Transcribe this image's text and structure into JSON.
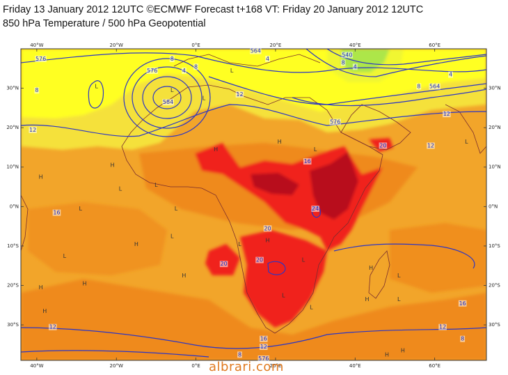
{
  "header": {
    "line1": "Friday 13 January 2012 12UTC ©ECMWF Forecast t+168 VT: Friday 20 January 2012 12UTC",
    "line2": "850 hPa Temperature / 500 hPa Geopotential"
  },
  "axes": {
    "lon_labels": [
      "40°W",
      "20°W",
      "0°E",
      "20°E",
      "40°E",
      "60°E"
    ],
    "lon_values": [
      -40,
      -20,
      0,
      20,
      40,
      60
    ],
    "lat_labels": [
      "30°N",
      "20°N",
      "10°N",
      "0°N",
      "10°S",
      "20°S",
      "30°S"
    ],
    "lat_values": [
      30,
      20,
      10,
      0,
      -10,
      -20,
      -30
    ],
    "lon_range": [
      -44,
      73
    ],
    "lat_range": [
      -39,
      40
    ]
  },
  "colors": {
    "background_warm": "#f2a52a",
    "cool_yellow": "#ffff00",
    "light_yellow": "#f5e13a",
    "orange_mid": "#ef8a1c",
    "hot_red": "#f0241a",
    "hottest": "#b8101a",
    "green": "#58d858",
    "contour_line": "#2a35c6",
    "coast_line": "#7a2d2d",
    "watermark": "#e07a20"
  },
  "contour_labels": [
    {
      "text": "576",
      "lon": -39,
      "lat": 37
    },
    {
      "text": "8",
      "lon": -40,
      "lat": 29
    },
    {
      "text": "12",
      "lon": -41,
      "lat": 19
    },
    {
      "text": "576",
      "lon": -11,
      "lat": 34
    },
    {
      "text": "8",
      "lon": -6,
      "lat": 37
    },
    {
      "text": "4",
      "lon": -3,
      "lat": 34
    },
    {
      "text": "8",
      "lon": 0,
      "lat": 35
    },
    {
      "text": "584",
      "lon": -7,
      "lat": 26
    },
    {
      "text": "12",
      "lon": 11,
      "lat": 28
    },
    {
      "text": "564",
      "lon": 15,
      "lat": 39
    },
    {
      "text": "4",
      "lon": 18,
      "lat": 37
    },
    {
      "text": "540",
      "lon": 38,
      "lat": 38
    },
    {
      "text": "8",
      "lon": 37,
      "lat": 36
    },
    {
      "text": "4",
      "lon": 40,
      "lat": 35
    },
    {
      "text": "8",
      "lon": 56,
      "lat": 30
    },
    {
      "text": "4",
      "lon": 64,
      "lat": 33
    },
    {
      "text": "564",
      "lon": 60,
      "lat": 30
    },
    {
      "text": "576",
      "lon": 35,
      "lat": 21
    },
    {
      "text": "12",
      "lon": 63,
      "lat": 23
    },
    {
      "text": "20",
      "lon": 47,
      "lat": 15
    },
    {
      "text": "12",
      "lon": 59,
      "lat": 15
    },
    {
      "text": "16",
      "lon": 28,
      "lat": 11
    },
    {
      "text": "24",
      "lon": 30,
      "lat": -1
    },
    {
      "text": "16",
      "lon": -35,
      "lat": -2
    },
    {
      "text": "20",
      "lon": 18,
      "lat": -6
    },
    {
      "text": "20",
      "lon": 16,
      "lat": -14
    },
    {
      "text": "20",
      "lon": 7,
      "lat": -15
    },
    {
      "text": "16",
      "lon": 67,
      "lat": -25
    },
    {
      "text": "12",
      "lon": 62,
      "lat": -31
    },
    {
      "text": "12",
      "lon": -36,
      "lat": -31
    },
    {
      "text": "8",
      "lon": 67,
      "lat": -34
    },
    {
      "text": "16",
      "lon": 17,
      "lat": -34
    },
    {
      "text": "12",
      "lon": 17,
      "lat": -36
    },
    {
      "text": "8",
      "lon": 11,
      "lat": -38
    },
    {
      "text": "576",
      "lon": 17,
      "lat": -39
    }
  ],
  "pressure_centers": [
    {
      "text": "L",
      "lon": -6,
      "lat": 29
    },
    {
      "text": "L",
      "lon": 2,
      "lat": 27
    },
    {
      "text": "L",
      "lon": -25,
      "lat": 30
    },
    {
      "text": "L",
      "lon": 9,
      "lat": 34
    },
    {
      "text": "H",
      "lon": 21,
      "lat": 16
    },
    {
      "text": "H",
      "lon": -21,
      "lat": 10
    },
    {
      "text": "H",
      "lon": -39,
      "lat": 7
    },
    {
      "text": "L",
      "lon": -19,
      "lat": 4
    },
    {
      "text": "L",
      "lon": -10,
      "lat": 5
    },
    {
      "text": "H",
      "lon": 5,
      "lat": 14
    },
    {
      "text": "L",
      "lon": -29,
      "lat": -1
    },
    {
      "text": "L",
      "lon": -5,
      "lat": -1
    },
    {
      "text": "L",
      "lon": -6,
      "lat": -8
    },
    {
      "text": "H",
      "lon": -15,
      "lat": -10
    },
    {
      "text": "L",
      "lon": -33,
      "lat": -13
    },
    {
      "text": "H",
      "lon": -28,
      "lat": -20
    },
    {
      "text": "H",
      "lon": -39,
      "lat": -21
    },
    {
      "text": "H",
      "lon": -3,
      "lat": -18
    },
    {
      "text": "L",
      "lon": 11,
      "lat": -10
    },
    {
      "text": "H",
      "lon": 18,
      "lat": -9
    },
    {
      "text": "L",
      "lon": 27,
      "lat": -14
    },
    {
      "text": "H",
      "lon": 44,
      "lat": -16
    },
    {
      "text": "L",
      "lon": 51,
      "lat": -18
    },
    {
      "text": "H",
      "lon": 43,
      "lat": -24
    },
    {
      "text": "L",
      "lon": 51,
      "lat": -24
    },
    {
      "text": "L",
      "lon": 29,
      "lat": -26
    },
    {
      "text": "L",
      "lon": 22,
      "lat": -23
    },
    {
      "text": "H",
      "lon": 52,
      "lat": -37
    },
    {
      "text": "H",
      "lon": 48,
      "lat": -38
    },
    {
      "text": "L",
      "lon": 68,
      "lat": 16
    },
    {
      "text": "L",
      "lon": 30,
      "lat": 14
    },
    {
      "text": "H",
      "lon": -38,
      "lat": -27
    }
  ],
  "watermark": "albrari.com"
}
